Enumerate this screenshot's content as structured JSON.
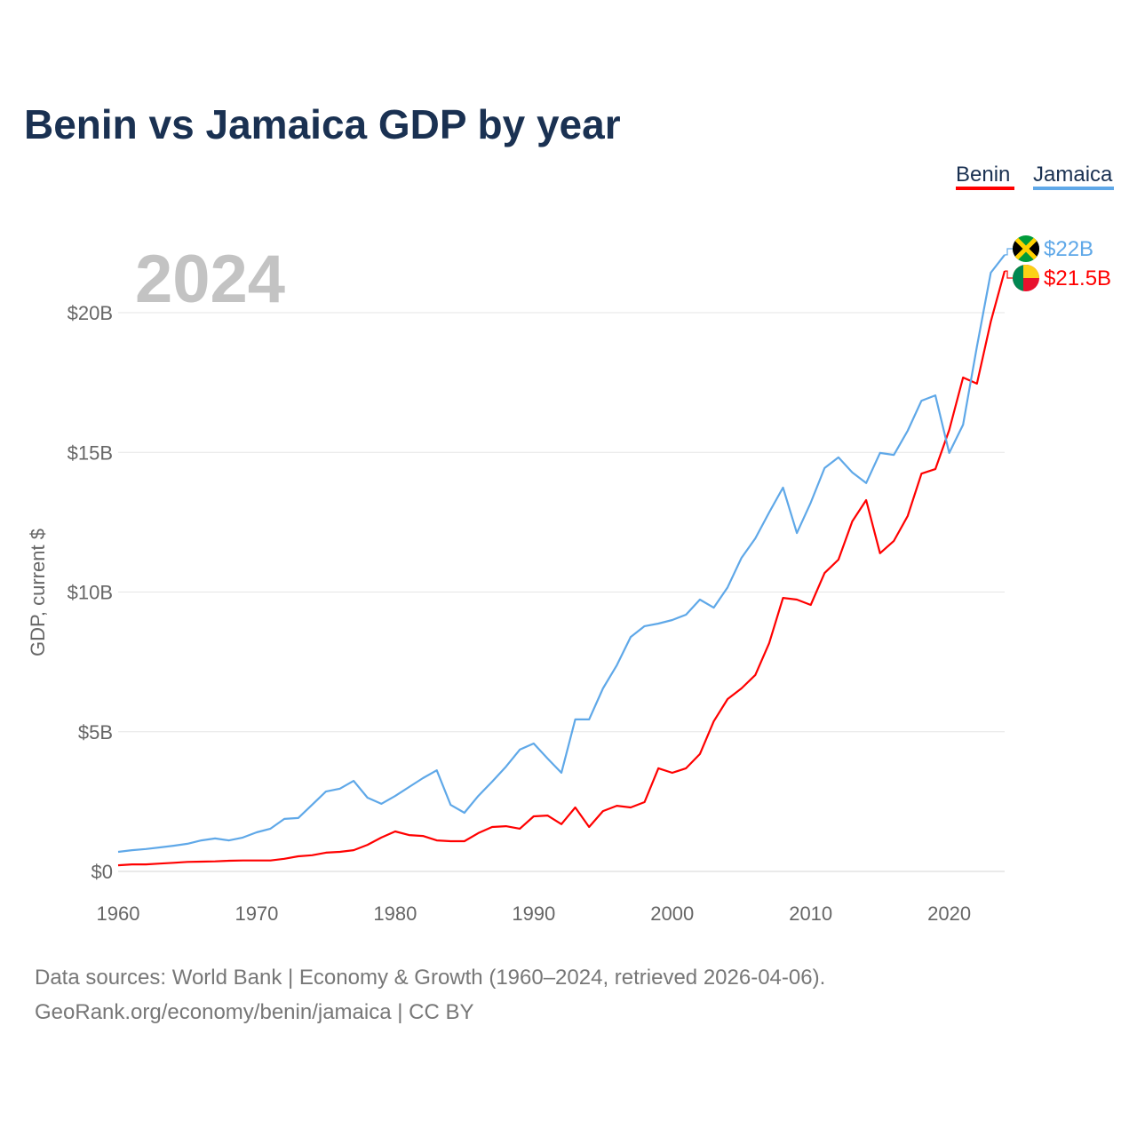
{
  "chart_data": {
    "type": "line",
    "title": "Benin vs Jamaica GDP by year",
    "xlabel": "",
    "ylabel": "GDP, current $",
    "xlim": [
      1960,
      2024
    ],
    "ylim": [
      0,
      22
    ],
    "grid": true,
    "legend_position": "top-right",
    "x_ticks": [
      1960,
      1970,
      1980,
      1990,
      2000,
      2010,
      2020
    ],
    "x_tick_labels": [
      "1960",
      "1970",
      "1980",
      "1990",
      "2000",
      "2010",
      "2020"
    ],
    "y_ticks": [
      0,
      5,
      10,
      15,
      20
    ],
    "y_tick_labels": [
      "$0",
      "$5B",
      "$10B",
      "$15B",
      "$20B"
    ],
    "year_watermark": "2024",
    "x": [
      1960,
      1961,
      1962,
      1963,
      1964,
      1965,
      1966,
      1967,
      1968,
      1969,
      1970,
      1971,
      1972,
      1973,
      1974,
      1975,
      1976,
      1977,
      1978,
      1979,
      1980,
      1981,
      1982,
      1983,
      1984,
      1985,
      1986,
      1987,
      1988,
      1989,
      1990,
      1991,
      1992,
      1993,
      1994,
      1995,
      1996,
      1997,
      1998,
      1999,
      2000,
      2001,
      2002,
      2003,
      2004,
      2005,
      2006,
      2007,
      2008,
      2009,
      2010,
      2011,
      2012,
      2013,
      2014,
      2015,
      2016,
      2017,
      2018,
      2019,
      2020,
      2021,
      2022,
      2023,
      2024
    ],
    "series": [
      {
        "name": "Benin",
        "color": "#ff0000",
        "end_label": "$21.5B",
        "flag": "benin-flag",
        "values": [
          0.22,
          0.25,
          0.25,
          0.28,
          0.31,
          0.34,
          0.35,
          0.36,
          0.38,
          0.39,
          0.39,
          0.39,
          0.45,
          0.54,
          0.58,
          0.67,
          0.7,
          0.76,
          0.95,
          1.21,
          1.43,
          1.3,
          1.27,
          1.11,
          1.08,
          1.08,
          1.37,
          1.59,
          1.62,
          1.53,
          1.97,
          2.0,
          1.69,
          2.29,
          1.59,
          2.16,
          2.35,
          2.29,
          2.48,
          3.69,
          3.53,
          3.69,
          4.2,
          5.37,
          6.17,
          6.55,
          7.03,
          8.17,
          9.79,
          9.73,
          9.54,
          10.68,
          11.16,
          12.53,
          13.29,
          11.39,
          11.83,
          12.72,
          14.24,
          14.4,
          15.8,
          17.68,
          17.46,
          19.68,
          21.49
        ]
      },
      {
        "name": "Jamaica",
        "color": "#5fa8e8",
        "end_label": "$22B",
        "flag": "jamaica-flag",
        "values": [
          0.7,
          0.76,
          0.8,
          0.86,
          0.92,
          0.99,
          1.11,
          1.18,
          1.11,
          1.21,
          1.4,
          1.53,
          1.88,
          1.91,
          2.38,
          2.86,
          2.96,
          3.24,
          2.64,
          2.42,
          2.7,
          3.02,
          3.34,
          3.62,
          2.38,
          2.1,
          2.7,
          3.21,
          3.75,
          4.36,
          4.58,
          4.04,
          3.53,
          5.44,
          5.44,
          6.55,
          7.38,
          8.39,
          8.78,
          8.87,
          9.0,
          9.19,
          9.73,
          9.44,
          10.17,
          11.22,
          11.92,
          12.85,
          13.74,
          12.11,
          13.2,
          14.44,
          14.82,
          14.28,
          13.9,
          14.98,
          14.91,
          15.77,
          16.85,
          17.04,
          14.98,
          15.99,
          18.79,
          21.43,
          22.07
        ]
      }
    ]
  },
  "footer": {
    "line1": "Data sources: World Bank | Economy & Growth (1960–2024, retrieved 2026-04-06).",
    "line2": "GeoRank.org/economy/benin/jamaica | CC BY"
  }
}
